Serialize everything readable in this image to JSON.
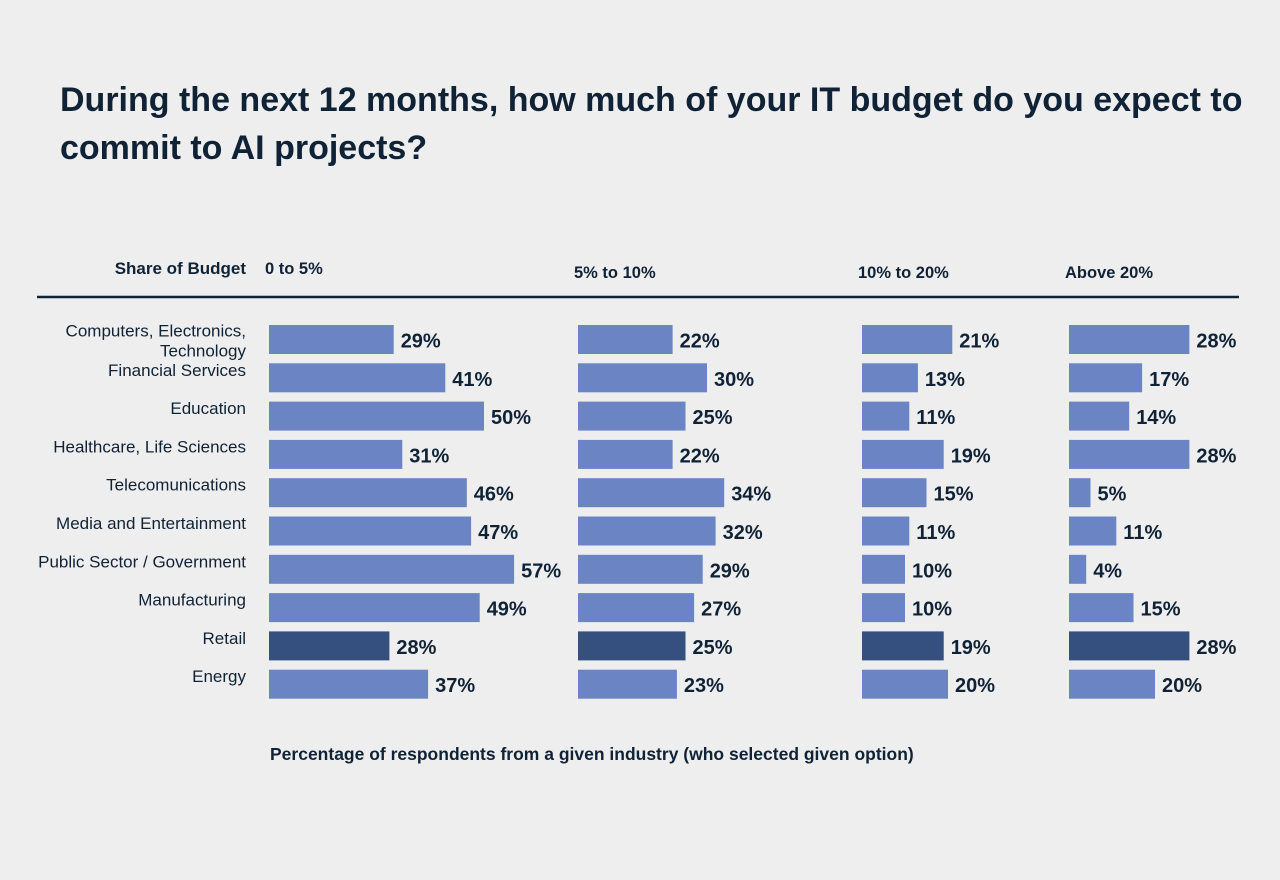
{
  "title": "During the next 12 months, how much of your IT budget do you expect to commit to AI projects?",
  "footnote": "Percentage of respondents from a given industry (who selected given option)",
  "colors": {
    "bar": "#6b84c4",
    "highlight": "#354f7f",
    "text": "#0f2236",
    "axis": "#0f2236"
  },
  "chart_data": {
    "type": "bar",
    "orientation": "horizontal",
    "row_header": "Share of Budget",
    "categories": [
      "Computers, Electronics, Technology",
      "Financial Services",
      "Education",
      "Healthcare, Life Sciences",
      "Telecomunications",
      "Media and Entertainment",
      "Public Sector / Government",
      "Manufacturing",
      "Retail",
      "Energy"
    ],
    "highlight_category": "Retail",
    "series": [
      {
        "name": "0 to 5%",
        "values": [
          29,
          41,
          50,
          31,
          46,
          47,
          57,
          49,
          28,
          37
        ]
      },
      {
        "name": "5% to 10%",
        "values": [
          22,
          30,
          25,
          22,
          34,
          32,
          29,
          27,
          25,
          23
        ]
      },
      {
        "name": "10% to 20%",
        "values": [
          21,
          13,
          11,
          19,
          15,
          11,
          10,
          10,
          19,
          20
        ]
      },
      {
        "name": "Above 20%",
        "values": [
          28,
          17,
          14,
          28,
          5,
          11,
          4,
          15,
          28,
          20
        ]
      }
    ],
    "value_suffix": "%",
    "grid": false
  }
}
